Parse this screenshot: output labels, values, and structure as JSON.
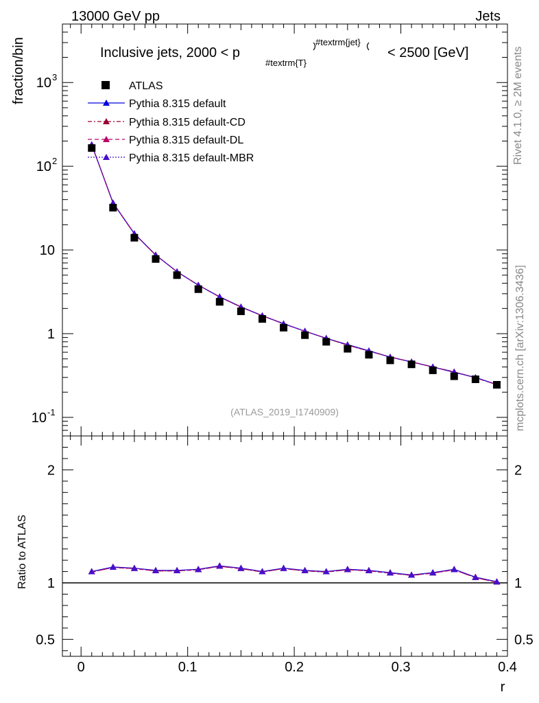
{
  "header": {
    "left": "13000 GeV pp",
    "right": "Jets"
  },
  "side_labels": {
    "rivet": "Rivet 4.1.0, ≥ 2M events",
    "mcplots": "mcplots.cern.ch [arXiv:1306.3436]"
  },
  "chart_data": {
    "type": "line",
    "title": "Inclusive jets, 2000 < p_{#textrm{T}}^{#textrm{jet}} < 2500 [GeV]",
    "title_parts": {
      "pre": "Inclusive jets, 2000 < p",
      "sub": "#textrm{T}",
      "sup": "#textrm{jet}",
      "post": "< 2500 [GeV]"
    },
    "analysis": "(ATLAS_2019_I1740909)",
    "xlabel": "r",
    "ylabel": "fraction/bin",
    "ratio_ylabel": "Ratio to ATLAS",
    "xlim": [
      -0.0175,
      0.4
    ],
    "ylim": [
      0.06,
      5000
    ],
    "yscale": "log",
    "ratio_ylim": [
      0.35,
      2.3
    ],
    "x_ticks": [
      "0",
      "0.1",
      "0.2",
      "0.3",
      "0.4"
    ],
    "y_ticks": [
      "10^{-1}",
      "1",
      "10",
      "10^{2}",
      "10^{3}"
    ],
    "ratio_ticks": [
      "0.5",
      "1",
      "2"
    ],
    "x": [
      0.01,
      0.03,
      0.05,
      0.07,
      0.09,
      0.11,
      0.13,
      0.15,
      0.17,
      0.19,
      0.21,
      0.23,
      0.25,
      0.27,
      0.29,
      0.31,
      0.33,
      0.35,
      0.37,
      0.39
    ],
    "data": {
      "name": "ATLAS",
      "values": [
        165,
        32,
        14,
        7.8,
        5.0,
        3.4,
        2.4,
        1.85,
        1.5,
        1.18,
        0.96,
        0.8,
        0.66,
        0.56,
        0.48,
        0.43,
        0.365,
        0.31,
        0.285,
        0.245
      ]
    },
    "series": [
      {
        "name": "Pythia 8.315 default",
        "color": "#0000dd",
        "dash": "solid",
        "values": [
          181,
          36.5,
          15.7,
          8.7,
          5.5,
          3.8,
          2.76,
          2.09,
          1.64,
          1.32,
          1.07,
          0.88,
          0.74,
          0.625,
          0.525,
          0.46,
          0.4,
          0.345,
          0.3,
          0.247
        ]
      },
      {
        "name": "Pythia 8.315 default-CD",
        "color": "#990033",
        "dash": "dashdot",
        "values": [
          181,
          36.3,
          15.6,
          8.7,
          5.5,
          3.8,
          2.74,
          2.08,
          1.64,
          1.31,
          1.07,
          0.88,
          0.73,
          0.62,
          0.525,
          0.46,
          0.4,
          0.35,
          0.297,
          0.246
        ]
      },
      {
        "name": "Pythia 8.315 default-DL",
        "color": "#bb0066",
        "dash": "dashed",
        "values": [
          181,
          36.3,
          15.6,
          8.7,
          5.5,
          3.8,
          2.74,
          2.08,
          1.64,
          1.31,
          1.07,
          0.88,
          0.73,
          0.62,
          0.525,
          0.46,
          0.4,
          0.35,
          0.297,
          0.246
        ]
      },
      {
        "name": "Pythia 8.315 default-MBR",
        "color": "#4411cc",
        "dash": "dotted",
        "values": [
          181,
          36.5,
          15.6,
          8.7,
          5.5,
          3.8,
          2.75,
          2.08,
          1.64,
          1.31,
          1.07,
          0.88,
          0.735,
          0.62,
          0.525,
          0.46,
          0.4,
          0.348,
          0.298,
          0.246
        ]
      }
    ],
    "ratio": {
      "values": [
        1.1,
        1.14,
        1.13,
        1.11,
        1.11,
        1.12,
        1.15,
        1.13,
        1.1,
        1.13,
        1.11,
        1.1,
        1.12,
        1.11,
        1.09,
        1.07,
        1.09,
        1.12,
        1.05,
        1.01
      ]
    },
    "legend": [
      "ATLAS",
      "Pythia 8.315 default",
      "Pythia 8.315 default-CD",
      "Pythia 8.315 default-DL",
      "Pythia 8.315 default-MBR"
    ]
  }
}
